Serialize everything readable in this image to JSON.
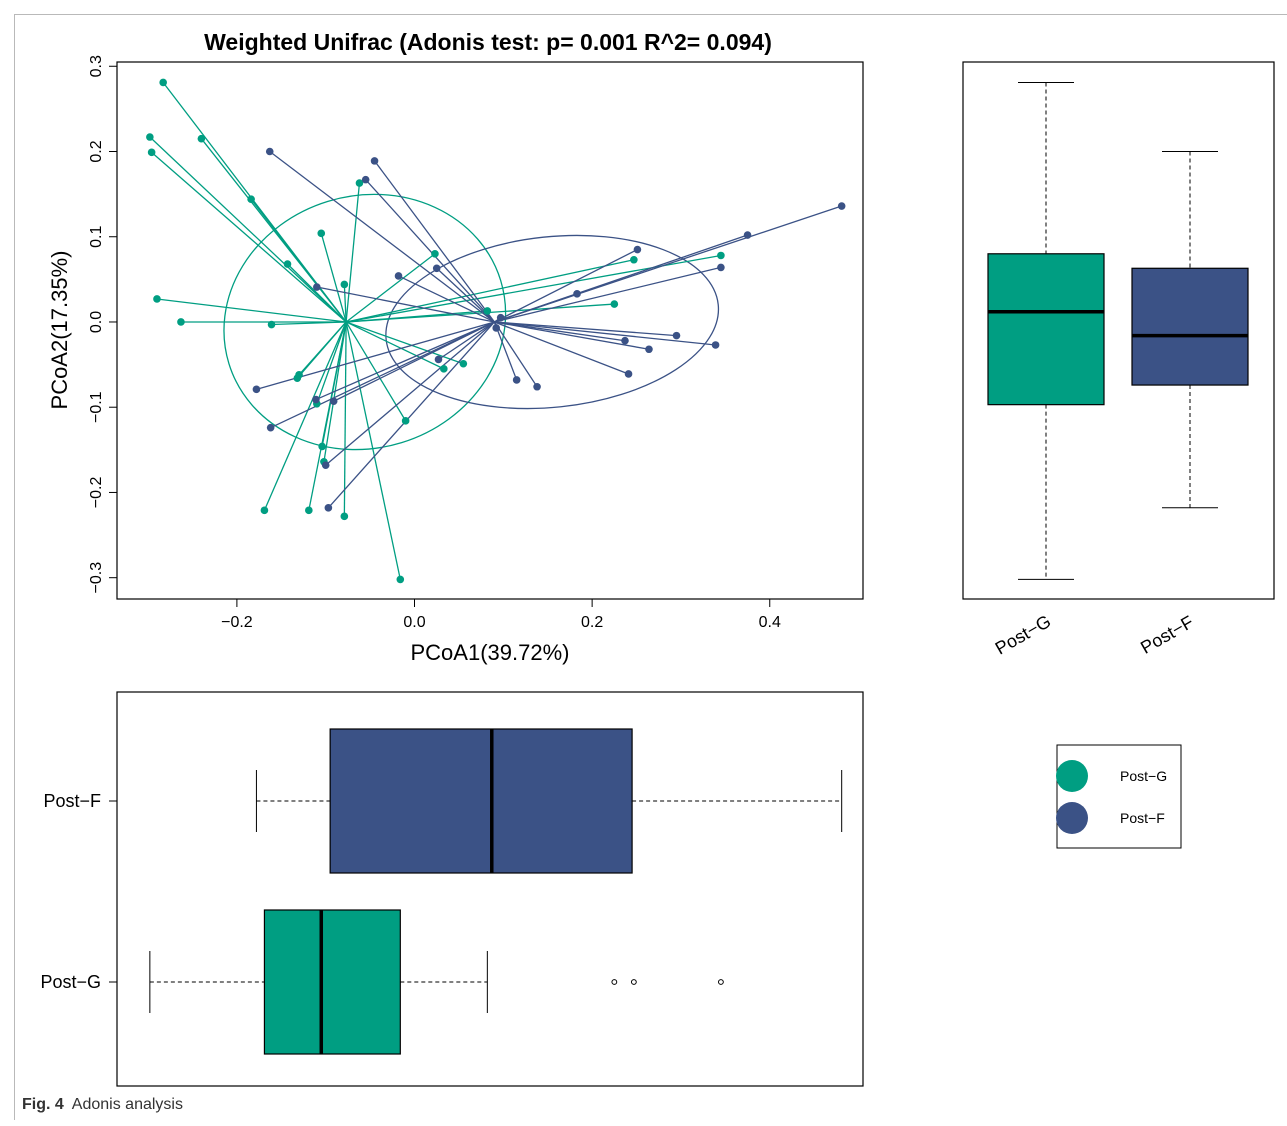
{
  "caption": {
    "label": "Fig. 4",
    "text": "Adonis analysis"
  },
  "colors": {
    "post_g": "#009E82",
    "post_f": "#3B5286",
    "axis": "#000000"
  },
  "chart_data": [
    {
      "id": "pcoa",
      "type": "scatter",
      "title": "Weighted Unifrac (Adonis test: p= 0.001  R^2= 0.094)",
      "xlabel": "PCoA1(39.72%)",
      "ylabel": "PCoA2(17.35%)",
      "xlim": [
        -0.335,
        0.505
      ],
      "ylim": [
        -0.325,
        0.305
      ],
      "xticks": [
        -0.2,
        0.0,
        0.2,
        0.4
      ],
      "xtick_labels": [
        "−0.2",
        "0.0",
        "0.2",
        "0.4"
      ],
      "yticks": [
        -0.3,
        -0.2,
        -0.1,
        0.0,
        0.1,
        0.2,
        0.3
      ],
      "ytick_labels": [
        "−0.3",
        "−0.2",
        "−0.1",
        "0.0",
        "0.1",
        "0.2",
        "0.3"
      ],
      "series": [
        {
          "name": "Post−G",
          "color": "#009E82",
          "centroid": [
            -0.077,
            0.0
          ],
          "ellipse": {
            "cx": -0.056,
            "cy": 0.0,
            "rx": 0.16,
            "ry": 0.148,
            "angle_deg": -17
          },
          "points": [
            [
              -0.283,
              0.281
            ],
            [
              -0.298,
              0.217
            ],
            [
              -0.296,
              0.199
            ],
            [
              -0.24,
              0.215
            ],
            [
              -0.184,
              0.144
            ],
            [
              -0.105,
              0.104
            ],
            [
              -0.062,
              0.163
            ],
            [
              -0.143,
              0.068
            ],
            [
              -0.079,
              0.044
            ],
            [
              -0.29,
              0.027
            ],
            [
              -0.263,
              0.0
            ],
            [
              -0.161,
              -0.003
            ],
            [
              -0.13,
              -0.062
            ],
            [
              -0.132,
              -0.066
            ],
            [
              -0.11,
              -0.096
            ],
            [
              -0.104,
              -0.146
            ],
            [
              -0.102,
              -0.164
            ],
            [
              -0.169,
              -0.221
            ],
            [
              -0.119,
              -0.221
            ],
            [
              -0.079,
              -0.228
            ],
            [
              -0.016,
              -0.302
            ],
            [
              -0.01,
              -0.116
            ],
            [
              0.023,
              0.08
            ],
            [
              0.033,
              -0.055
            ],
            [
              0.055,
              -0.049
            ],
            [
              0.082,
              0.013
            ],
            [
              0.225,
              0.021
            ],
            [
              0.247,
              0.073
            ],
            [
              0.345,
              0.078
            ]
          ]
        },
        {
          "name": "Post−F",
          "color": "#3B5286",
          "centroid": [
            0.09,
            0.0
          ],
          "ellipse": {
            "cx": 0.155,
            "cy": 0.0,
            "rx": 0.188,
            "ry": 0.1,
            "angle_deg": -6
          },
          "points": [
            [
              -0.163,
              0.2
            ],
            [
              -0.045,
              0.189
            ],
            [
              -0.055,
              0.167
            ],
            [
              -0.11,
              0.041
            ],
            [
              -0.018,
              0.054
            ],
            [
              0.025,
              0.063
            ],
            [
              0.251,
              0.085
            ],
            [
              0.375,
              0.102
            ],
            [
              0.481,
              0.136
            ],
            [
              0.345,
              0.064
            ],
            [
              0.183,
              0.033
            ],
            [
              0.097,
              0.005
            ],
            [
              0.092,
              -0.007
            ],
            [
              0.295,
              -0.016
            ],
            [
              0.237,
              -0.022
            ],
            [
              0.264,
              -0.032
            ],
            [
              0.339,
              -0.027
            ],
            [
              0.241,
              -0.061
            ],
            [
              0.115,
              -0.068
            ],
            [
              0.138,
              -0.076
            ],
            [
              0.027,
              -0.044
            ],
            [
              -0.178,
              -0.079
            ],
            [
              -0.162,
              -0.124
            ],
            [
              -0.111,
              -0.091
            ],
            [
              -0.091,
              -0.093
            ],
            [
              -0.1,
              -0.168
            ],
            [
              -0.097,
              -0.218
            ]
          ]
        }
      ]
    },
    {
      "id": "box-pc2",
      "type": "box",
      "orientation": "vertical",
      "categories": [
        "Post−G",
        "Post−F"
      ],
      "ylim": [
        -0.325,
        0.305
      ],
      "boxes": [
        {
          "name": "Post−G",
          "min": -0.302,
          "q1": -0.097,
          "median": 0.012,
          "q3": 0.08,
          "max": 0.281,
          "color": "#009E82"
        },
        {
          "name": "Post−F",
          "min": -0.218,
          "q1": -0.074,
          "median": -0.016,
          "q3": 0.063,
          "max": 0.2,
          "color": "#3B5286"
        }
      ]
    },
    {
      "id": "box-pc1",
      "type": "box",
      "orientation": "horizontal",
      "categories": [
        "Post−F",
        "Post−G"
      ],
      "xlim": [
        -0.335,
        0.505
      ],
      "boxes": [
        {
          "name": "Post−F",
          "min": -0.178,
          "q1": -0.095,
          "median": 0.087,
          "q3": 0.245,
          "max": 0.481,
          "outliers": [],
          "color": "#3B5286"
        },
        {
          "name": "Post−G",
          "min": -0.298,
          "q1": -0.169,
          "median": -0.105,
          "q3": -0.016,
          "max": 0.082,
          "outliers": [
            0.225,
            0.247,
            0.345
          ],
          "color": "#009E82"
        }
      ]
    }
  ],
  "legend": [
    {
      "label": "Post−G",
      "color": "#009E82"
    },
    {
      "label": "Post−F",
      "color": "#3B5286"
    }
  ]
}
